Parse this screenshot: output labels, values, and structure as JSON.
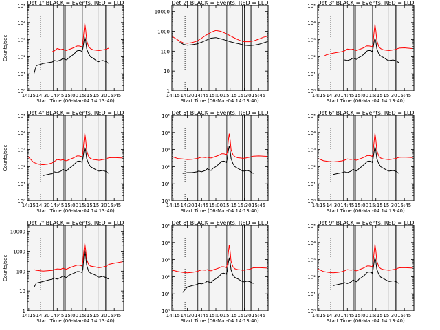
{
  "colors": {
    "background": "#ffffff",
    "events": "#000000",
    "lld": "#ff0000",
    "plot_bg": "#f4f4f4"
  },
  "shared": {
    "xlabel": "Start Time (06-Mar-04 14:13:40)",
    "ylabel": "Counts/sec",
    "x_ticks": [
      "14:15",
      "14:30",
      "14:45",
      "15:00",
      "15:15",
      "15:30",
      "15:45"
    ],
    "x_tick_minutes": [
      15,
      30,
      45,
      60,
      75,
      90,
      105
    ],
    "xlim_minutes": [
      13.67,
      115
    ],
    "dotted_line_minute": 27.5,
    "vertical_lines_minutes": [
      41,
      52,
      53.5,
      71.5,
      88,
      90,
      96,
      97
    ],
    "y_scale": "log"
  },
  "chart_data": [
    {
      "type": "line",
      "title": "Det 1f BLACK = Events, RED = LLD",
      "y_ticks": [
        "10⁰",
        "10¹",
        "10²",
        "10³",
        "10⁴",
        "10⁵"
      ],
      "ylim": [
        1,
        100000
      ],
      "x": [
        20.5,
        23,
        30,
        40,
        42,
        45,
        49,
        51,
        53,
        55,
        57,
        60,
        63,
        65,
        66,
        68,
        70,
        71,
        72,
        73,
        74,
        75,
        76,
        78,
        80,
        83,
        86,
        88,
        90,
        93,
        95,
        97,
        98,
        99.5
      ],
      "series": [
        {
          "name": "BLACK = Events",
          "values": [
            10,
            30,
            40,
            50,
            60,
            55,
            65,
            80,
            70,
            65,
            85,
            110,
            150,
            200,
            220,
            230,
            220,
            200,
            300,
            700,
            1500,
            900,
            300,
            150,
            100,
            80,
            60,
            50,
            55,
            60,
            55,
            50,
            45,
            40
          ]
        },
        {
          "name": "RED = LLD",
          "values": [
            null,
            null,
            null,
            200,
            220,
            300,
            260,
            280,
            240,
            230,
            260,
            300,
            350,
            400,
            420,
            420,
            400,
            380,
            600,
            2500,
            9000,
            4000,
            900,
            400,
            300,
            250,
            240,
            230,
            230,
            250,
            260,
            280,
            300,
            320
          ]
        }
      ]
    },
    {
      "type": "line",
      "title": "Det 2f BLACK = Events, RED = LLD",
      "y_ticks": [
        "1",
        "10",
        "100",
        "1000",
        "10000"
      ],
      "ylim": [
        1,
        20000
      ],
      "x": [
        14,
        18,
        22,
        26,
        30,
        35,
        40,
        45,
        50,
        55,
        60,
        65,
        70,
        75,
        80,
        85,
        90,
        95,
        100,
        105,
        110,
        114
      ],
      "series": [
        {
          "name": "BLACK = Events",
          "values": [
            null,
            null,
            280,
            220,
            200,
            210,
            230,
            280,
            360,
            450,
            480,
            420,
            360,
            300,
            260,
            230,
            200,
            190,
            200,
            220,
            260,
            300
          ]
        },
        {
          "name": "RED = LLD",
          "values": [
            550,
            420,
            320,
            260,
            250,
            270,
            320,
            450,
            650,
            900,
            1100,
            1000,
            800,
            600,
            450,
            350,
            300,
            300,
            330,
            400,
            500,
            560
          ]
        }
      ]
    },
    {
      "type": "line",
      "title": "Det 3f BLACK = Events, RED = LLD",
      "y_ticks": [
        "10⁰",
        "10¹",
        "10²",
        "10³",
        "10⁴",
        "10⁵"
      ],
      "ylim": [
        1,
        100000
      ],
      "x": [
        20.5,
        23,
        30,
        40,
        42,
        45,
        49,
        51,
        53,
        55,
        57,
        60,
        63,
        65,
        66,
        68,
        70,
        71,
        72,
        73,
        74,
        75,
        76,
        78,
        80,
        83,
        86,
        88,
        90,
        93,
        95,
        97,
        98,
        99.5,
        105,
        114
      ],
      "series": [
        {
          "name": "BLACK = Events",
          "values": [
            null,
            null,
            null,
            null,
            65,
            60,
            70,
            85,
            75,
            70,
            90,
            110,
            150,
            200,
            220,
            230,
            220,
            200,
            300,
            700,
            1200,
            800,
            300,
            150,
            110,
            90,
            70,
            60,
            60,
            65,
            60,
            55,
            50,
            45,
            null,
            null
          ]
        },
        {
          "name": "RED = LLD",
          "values": [
            110,
            130,
            160,
            200,
            220,
            280,
            260,
            280,
            240,
            230,
            260,
            300,
            350,
            420,
            430,
            420,
            400,
            380,
            600,
            2500,
            8000,
            3500,
            900,
            400,
            300,
            250,
            240,
            230,
            230,
            250,
            260,
            280,
            300,
            320,
            330,
            300
          ]
        }
      ]
    },
    {
      "type": "line",
      "title": "Det 4f BLACK = Events, RED = LLD",
      "y_ticks": [
        "10⁰",
        "10¹",
        "10²",
        "10³",
        "10⁴",
        "10⁵"
      ],
      "ylim": [
        1,
        100000
      ],
      "x": [
        14,
        20,
        25,
        30,
        35,
        40,
        42,
        45,
        49,
        51,
        53,
        55,
        57,
        60,
        63,
        65,
        66,
        68,
        70,
        71,
        72,
        73,
        74,
        75,
        76,
        78,
        80,
        83,
        86,
        88,
        90,
        93,
        95,
        97,
        98,
        99.5,
        105,
        114
      ],
      "series": [
        {
          "name": "BLACK = Events",
          "values": [
            null,
            null,
            null,
            30,
            35,
            40,
            50,
            45,
            55,
            70,
            60,
            55,
            75,
            100,
            140,
            180,
            200,
            210,
            200,
            180,
            280,
            700,
            1400,
            900,
            300,
            150,
            100,
            80,
            65,
            55,
            55,
            60,
            55,
            50,
            45,
            40,
            null,
            null
          ]
        },
        {
          "name": "RED = LLD",
          "values": [
            400,
            180,
            140,
            130,
            140,
            170,
            200,
            260,
            240,
            260,
            230,
            220,
            250,
            290,
            340,
            400,
            420,
            420,
            400,
            380,
            600,
            2600,
            9000,
            4000,
            900,
            400,
            300,
            260,
            250,
            240,
            240,
            260,
            270,
            290,
            310,
            330,
            340,
            320
          ]
        }
      ]
    },
    {
      "type": "line",
      "title": "Det 5f BLACK = Events, RED = LLD",
      "y_ticks": [
        "10⁰",
        "10¹",
        "10²",
        "10³",
        "10⁴",
        "10⁵"
      ],
      "ylim": [
        1,
        100000
      ],
      "x": [
        14,
        20,
        25,
        30,
        35,
        40,
        42,
        45,
        49,
        51,
        53,
        55,
        57,
        60,
        63,
        65,
        66,
        68,
        70,
        71,
        72,
        73,
        74,
        75,
        76,
        78,
        80,
        83,
        86,
        88,
        90,
        93,
        95,
        97,
        98,
        99.5,
        105,
        114
      ],
      "series": [
        {
          "name": "BLACK = Events",
          "values": [
            null,
            null,
            40,
            45,
            45,
            50,
            55,
            50,
            60,
            75,
            65,
            60,
            80,
            100,
            140,
            180,
            200,
            210,
            200,
            180,
            280,
            800,
            1600,
            900,
            300,
            150,
            100,
            80,
            65,
            55,
            55,
            60,
            55,
            50,
            45,
            40,
            null,
            null
          ]
        },
        {
          "name": "RED = LLD",
          "values": [
            380,
            300,
            280,
            260,
            270,
            300,
            320,
            360,
            340,
            360,
            330,
            320,
            350,
            400,
            460,
            520,
            560,
            560,
            540,
            500,
            700,
            3000,
            8500,
            4000,
            1000,
            500,
            380,
            330,
            320,
            310,
            310,
            330,
            350,
            370,
            390,
            410,
            420,
            400
          ]
        }
      ]
    },
    {
      "type": "line",
      "title": "Det 6f BLACK = Events, RED = LLD",
      "y_ticks": [
        "10⁰",
        "10¹",
        "10²",
        "10³",
        "10⁴",
        "10⁵"
      ],
      "ylim": [
        1,
        100000
      ],
      "x": [
        14,
        20,
        25,
        30,
        35,
        40,
        42,
        45,
        49,
        51,
        53,
        55,
        57,
        60,
        63,
        65,
        66,
        68,
        70,
        71,
        72,
        73,
        74,
        75,
        76,
        78,
        80,
        83,
        86,
        88,
        90,
        93,
        95,
        97,
        98,
        99.5,
        105,
        114
      ],
      "series": [
        {
          "name": "BLACK = Events",
          "values": [
            null,
            null,
            null,
            35,
            40,
            45,
            50,
            45,
            55,
            70,
            60,
            55,
            75,
            100,
            140,
            180,
            200,
            210,
            200,
            180,
            280,
            700,
            1500,
            900,
            300,
            150,
            100,
            80,
            65,
            55,
            55,
            60,
            55,
            50,
            45,
            40,
            null,
            null
          ]
        },
        {
          "name": "RED = LLD",
          "values": [
            300,
            220,
            200,
            190,
            200,
            220,
            240,
            280,
            260,
            280,
            250,
            240,
            270,
            310,
            360,
            420,
            440,
            440,
            420,
            400,
            620,
            2600,
            9000,
            4000,
            900,
            420,
            320,
            280,
            270,
            260,
            260,
            280,
            290,
            310,
            330,
            350,
            360,
            340
          ]
        }
      ]
    },
    {
      "type": "line",
      "title": "Det 7f BLACK = Events, RED = LLD",
      "y_ticks": [
        "1",
        "10",
        "100",
        "1000",
        "10000"
      ],
      "ylim": [
        1,
        20000
      ],
      "x": [
        20.5,
        23,
        30,
        35,
        40,
        42,
        45,
        49,
        51,
        53,
        55,
        57,
        60,
        63,
        65,
        66,
        68,
        70,
        71,
        72,
        73,
        74,
        75,
        76,
        78,
        80,
        83,
        86,
        88,
        90,
        93,
        95,
        97,
        98,
        99.5,
        105,
        114
      ],
      "series": [
        {
          "name": "BLACK = Events",
          "values": [
            15,
            25,
            30,
            35,
            40,
            45,
            40,
            48,
            58,
            50,
            48,
            60,
            70,
            80,
            90,
            95,
            95,
            90,
            85,
            120,
            500,
            1200,
            600,
            200,
            100,
            80,
            70,
            60,
            50,
            50,
            55,
            50,
            45,
            42,
            40,
            null,
            null
          ]
        },
        {
          "name": "RED = LLD",
          "values": [
            120,
            110,
            100,
            105,
            110,
            120,
            130,
            125,
            140,
            130,
            125,
            140,
            160,
            180,
            190,
            200,
            200,
            190,
            180,
            300,
            1000,
            2500,
            1200,
            400,
            220,
            180,
            170,
            160,
            150,
            150,
            160,
            170,
            180,
            200,
            220,
            250,
            300
          ]
        }
      ]
    },
    {
      "type": "line",
      "title": "Det 8f BLACK = Events, RED = LLD",
      "y_ticks": [
        "10⁰",
        "10¹",
        "10²",
        "10³",
        "10⁴",
        "10⁵"
      ],
      "ylim": [
        1,
        100000
      ],
      "x": [
        14,
        20,
        25,
        30,
        35,
        40,
        42,
        45,
        49,
        51,
        53,
        55,
        57,
        60,
        63,
        65,
        66,
        68,
        70,
        71,
        72,
        73,
        74,
        75,
        76,
        78,
        80,
        83,
        86,
        88,
        90,
        93,
        95,
        97,
        98,
        99.5,
        105,
        114
      ],
      "series": [
        {
          "name": "BLACK = Events",
          "values": [
            null,
            null,
            12,
            25,
            30,
            35,
            40,
            38,
            45,
            55,
            48,
            45,
            60,
            75,
            100,
            130,
            150,
            160,
            150,
            140,
            220,
            600,
            1300,
            700,
            250,
            120,
            90,
            75,
            60,
            52,
            50,
            55,
            52,
            48,
            44,
            40,
            null,
            null
          ]
        },
        {
          "name": "RED = LLD",
          "values": [
            240,
            200,
            180,
            170,
            180,
            200,
            220,
            250,
            240,
            260,
            230,
            220,
            250,
            280,
            320,
            360,
            380,
            380,
            360,
            340,
            520,
            2200,
            7000,
            3200,
            800,
            380,
            290,
            260,
            250,
            240,
            240,
            260,
            270,
            290,
            310,
            330,
            340,
            320
          ]
        }
      ]
    },
    {
      "type": "line",
      "title": "Det 9f BLACK = Events, RED = LLD",
      "y_ticks": [
        "10⁰",
        "10¹",
        "10²",
        "10³",
        "10⁴",
        "10⁵"
      ],
      "ylim": [
        1,
        100000
      ],
      "x": [
        14,
        20,
        25,
        30,
        35,
        40,
        42,
        45,
        49,
        51,
        53,
        55,
        57,
        60,
        63,
        65,
        66,
        68,
        70,
        71,
        72,
        73,
        74,
        75,
        76,
        78,
        80,
        83,
        86,
        88,
        90,
        93,
        95,
        97,
        98,
        99.5,
        105,
        114
      ],
      "series": [
        {
          "name": "BLACK = Events",
          "values": [
            null,
            null,
            null,
            30,
            35,
            40,
            45,
            40,
            50,
            65,
            55,
            50,
            70,
            90,
            120,
            160,
            180,
            190,
            180,
            160,
            250,
            650,
            1400,
            800,
            280,
            140,
            95,
            78,
            62,
            54,
            52,
            58,
            54,
            48,
            44,
            40,
            null,
            null
          ]
        },
        {
          "name": "RED = LLD",
          "values": [
            280,
            200,
            180,
            170,
            180,
            200,
            220,
            260,
            240,
            260,
            230,
            220,
            250,
            290,
            340,
            400,
            420,
            420,
            400,
            380,
            580,
            2400,
            8000,
            3600,
            850,
            400,
            300,
            260,
            250,
            240,
            240,
            260,
            270,
            290,
            310,
            330,
            340,
            320
          ]
        }
      ]
    }
  ]
}
